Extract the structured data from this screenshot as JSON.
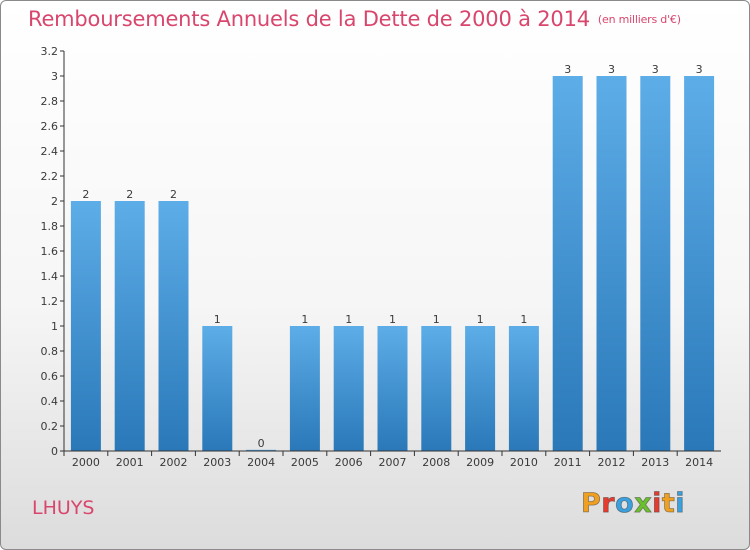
{
  "chart_data": {
    "type": "bar",
    "title": "Remboursements Annuels de la Dette de 2000 à 2014",
    "subtitle": "(en milliers d'€)",
    "categories": [
      "2000",
      "2001",
      "2002",
      "2003",
      "2004",
      "2005",
      "2006",
      "2007",
      "2008",
      "2009",
      "2010",
      "2011",
      "2012",
      "2013",
      "2014"
    ],
    "values": [
      2,
      2,
      2,
      1,
      0,
      1,
      1,
      1,
      1,
      1,
      1,
      3,
      3,
      3,
      3
    ],
    "value_labels": [
      "2",
      "2",
      "2",
      "1",
      "0",
      "1",
      "1",
      "1",
      "1",
      "1",
      "1",
      "3",
      "3",
      "3",
      "3"
    ],
    "ylim": [
      0,
      3.2
    ],
    "yticks": [
      0,
      0.2,
      0.4,
      0.6,
      0.8,
      1,
      1.2,
      1.4,
      1.6,
      1.8,
      2,
      2.2,
      2.4,
      2.6,
      2.8,
      3,
      3.2
    ],
    "ytick_labels": [
      "0",
      "0.2",
      "0.4",
      "0.6",
      "0.8",
      "1",
      "1.2",
      "1.4",
      "1.6",
      "1.8",
      "2",
      "2.2",
      "2.4",
      "2.6",
      "2.8",
      "3",
      "3.2"
    ],
    "grid": false,
    "bar_color_top": "#5dade8",
    "bar_color_bottom": "#2a78b8"
  },
  "commune_name": "LHUYS",
  "logo": {
    "letters": [
      "P",
      "r",
      "o",
      "x",
      "i",
      "t",
      "i"
    ],
    "colors": [
      "#f0a020",
      "#e63c30",
      "#3aa0de",
      "#6cbf2e",
      "#e63c30",
      "#f0a020",
      "#3aa0de"
    ]
  },
  "colors": {
    "title": "#d9466d",
    "axis": "#333333"
  }
}
